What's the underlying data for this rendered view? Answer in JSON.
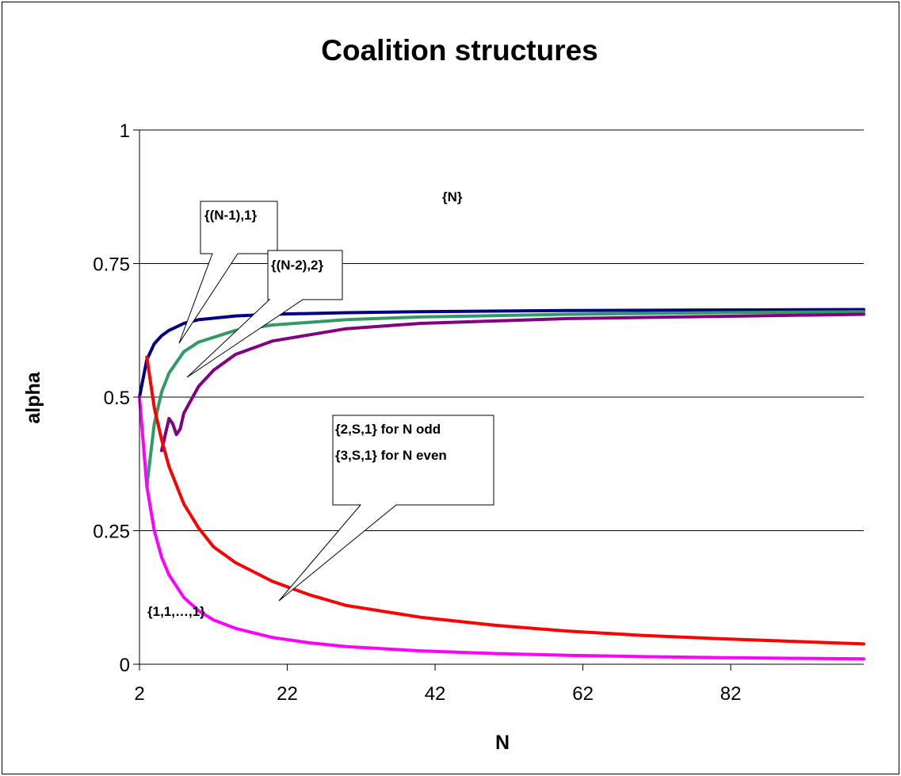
{
  "chart_data": {
    "type": "line",
    "title": "Coalition structures",
    "xlabel": "N",
    "ylabel": "alpha",
    "xlim": [
      2,
      100
    ],
    "ylim": [
      0,
      1
    ],
    "x_ticks": [
      "2",
      "22",
      "42",
      "62",
      "82"
    ],
    "y_ticks": [
      "0",
      "0.25",
      "0.5",
      "0.75",
      "1"
    ],
    "grid": "horizontal",
    "legend": "none",
    "series": [
      {
        "color": "#000080",
        "x": [
          2,
          3,
          4,
          5,
          6,
          8,
          10,
          15,
          20,
          30,
          40,
          60,
          80,
          100
        ],
        "values": [
          0.5,
          0.57,
          0.6,
          0.615,
          0.625,
          0.638,
          0.645,
          0.652,
          0.655,
          0.658,
          0.66,
          0.662,
          0.663,
          0.664
        ]
      },
      {
        "color": "#339966",
        "x": [
          3,
          4,
          5,
          6,
          8,
          10,
          15,
          20,
          30,
          40,
          60,
          80,
          100
        ],
        "values": [
          0.333,
          0.45,
          0.51,
          0.545,
          0.585,
          0.603,
          0.625,
          0.635,
          0.645,
          0.65,
          0.655,
          0.658,
          0.66
        ]
      },
      {
        "color": "#800080",
        "x": [
          5,
          5.5,
          6,
          6.5,
          7,
          7.5,
          8,
          10,
          12,
          15,
          20,
          30,
          40,
          60,
          80,
          100
        ],
        "values": [
          0.4,
          0.43,
          0.46,
          0.45,
          0.43,
          0.44,
          0.47,
          0.52,
          0.55,
          0.58,
          0.605,
          0.628,
          0.638,
          0.647,
          0.651,
          0.655
        ]
      },
      {
        "color": "#ff0000",
        "x": [
          3,
          4,
          5,
          6,
          8,
          10,
          12,
          15,
          20,
          25,
          30,
          40,
          50,
          60,
          70,
          80,
          90,
          100
        ],
        "values": [
          0.575,
          0.48,
          0.42,
          0.37,
          0.3,
          0.255,
          0.22,
          0.19,
          0.155,
          0.13,
          0.11,
          0.088,
          0.073,
          0.062,
          0.054,
          0.048,
          0.043,
          0.038
        ]
      },
      {
        "color": "#ff00ff",
        "x": [
          2,
          3,
          4,
          5,
          6,
          8,
          10,
          12,
          15,
          20,
          25,
          30,
          40,
          50,
          60,
          70,
          80,
          90,
          100
        ],
        "values": [
          0.5,
          0.333,
          0.25,
          0.2,
          0.167,
          0.125,
          0.1,
          0.083,
          0.067,
          0.05,
          0.04,
          0.033,
          0.025,
          0.02,
          0.0167,
          0.0143,
          0.0125,
          0.0111,
          0.01
        ]
      }
    ],
    "annotations": [
      {
        "text": "{N}"
      },
      {
        "text": "{(N-1),1}"
      },
      {
        "text": "{(N-2),2}"
      },
      {
        "text": "{2,S,1} for N odd"
      },
      {
        "text": "{3,S,1} for N even"
      },
      {
        "text": "{1,1,…,1}"
      }
    ]
  }
}
